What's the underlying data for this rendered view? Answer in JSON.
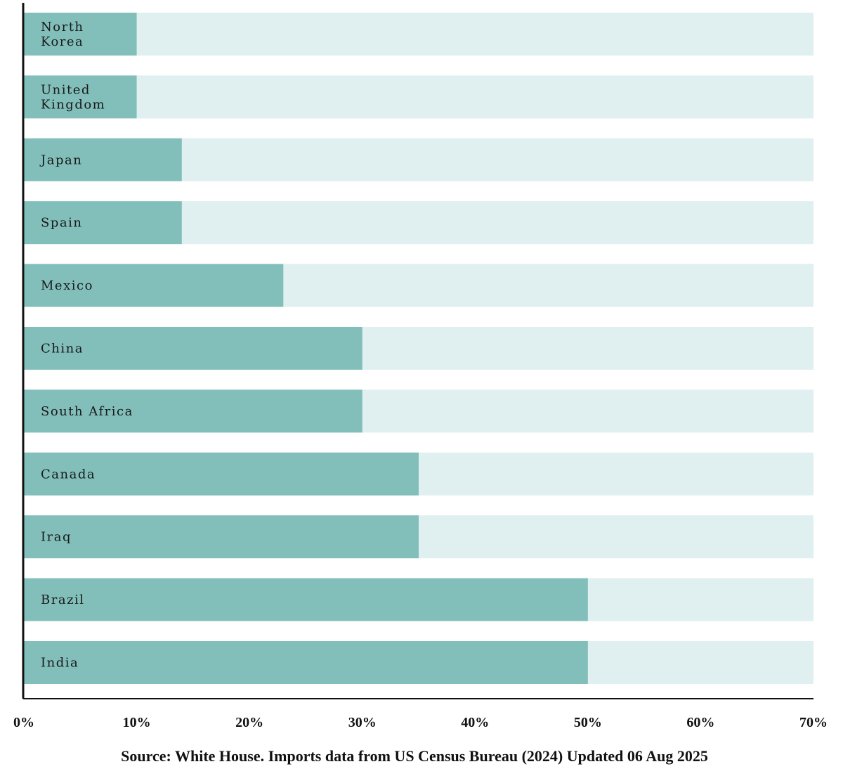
{
  "chart_data": {
    "type": "bar",
    "orientation": "horizontal",
    "categories": [
      "North Korea",
      "United Kingdom",
      "Japan",
      "Spain",
      "Mexico",
      "China",
      "South Africa",
      "Canada",
      "Iraq",
      "Brazil",
      "India"
    ],
    "category_lines": [
      [
        "North",
        "Korea"
      ],
      [
        "United",
        "Kingdom"
      ],
      [
        "Japan"
      ],
      [
        "Spain"
      ],
      [
        "Mexico"
      ],
      [
        "China"
      ],
      [
        "South Africa"
      ],
      [
        "Canada"
      ],
      [
        "Iraq"
      ],
      [
        "Brazil"
      ],
      [
        "India"
      ]
    ],
    "values": [
      10,
      10,
      14,
      14,
      23,
      30,
      30,
      35,
      35,
      50,
      50
    ],
    "xlim": [
      0,
      70
    ],
    "xticks": [
      0,
      10,
      20,
      30,
      40,
      50,
      60,
      70
    ],
    "xtick_labels": [
      "0%",
      "10%",
      "20%",
      "30%",
      "40%",
      "50%",
      "60%",
      "70%"
    ],
    "background_track": true,
    "grid": false,
    "legend": "none",
    "source_note": "Source: White House. Imports data from US Census Bureau (2024)  Updated 06 Aug 2025"
  },
  "colors": {
    "bar": "#82bfbb",
    "track": "#e0efef",
    "axis": "#111111"
  }
}
